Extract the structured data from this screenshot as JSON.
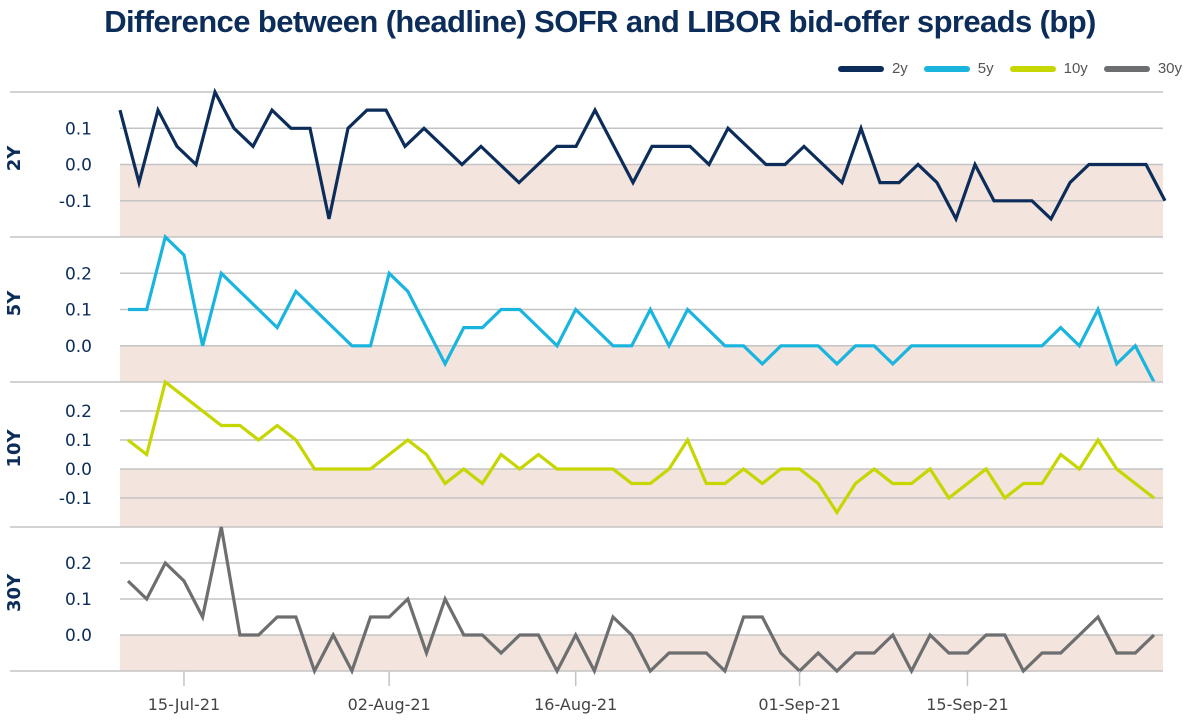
{
  "chart_data": {
    "type": "line",
    "title": "Difference between (headline) SOFR and LIBOR bid-offer spreads (bp)",
    "xlabel": "",
    "ylabel": "",
    "grid": true,
    "legend_position": "top-right",
    "x_tick_labels": [
      "15-Jul-21",
      "02-Aug-21",
      "16-Aug-21",
      "01-Sep-21",
      "15-Sep-21"
    ],
    "x_tick_indices": [
      3,
      14,
      24,
      36,
      45
    ],
    "n_points": 56,
    "negative_region_color": "#f3e4de",
    "series": [
      {
        "name": "2y",
        "panel_label": "2Y",
        "color": "#0c2d5a",
        "ylim": [
          -0.2,
          0.2
        ],
        "yticks": [
          "0.1",
          "0.0",
          "-0.1"
        ],
        "ytick_values": [
          0.1,
          0.0,
          -0.1
        ],
        "values": [
          0.15,
          -0.05,
          0.15,
          0.05,
          0.0,
          0.2,
          0.1,
          0.05,
          0.15,
          0.1,
          0.1,
          -0.15,
          0.1,
          0.15,
          0.15,
          0.05,
          0.1,
          0.05,
          0.0,
          0.05,
          0.0,
          -0.05,
          0.0,
          0.05,
          0.05,
          0.15,
          0.05,
          -0.05,
          0.05,
          0.05,
          0.05,
          0.0,
          0.1,
          0.05,
          0.0,
          0.0,
          0.05,
          0.0,
          -0.05,
          0.1,
          -0.05,
          -0.05,
          0.0,
          -0.05,
          -0.15,
          0.0,
          -0.1,
          -0.1,
          -0.1,
          -0.15,
          -0.05,
          0.0,
          0.0,
          0.0,
          0.0,
          -0.1
        ]
      },
      {
        "name": "5y",
        "panel_label": "5Y",
        "color": "#1ab5de",
        "ylim": [
          -0.1,
          0.3
        ],
        "yticks": [
          "0.2",
          "0.1",
          "0.0"
        ],
        "ytick_values": [
          0.2,
          0.1,
          0.0
        ],
        "values": [
          0.1,
          0.1,
          0.3,
          0.25,
          0.0,
          0.2,
          0.15,
          0.1,
          0.05,
          0.15,
          0.1,
          0.05,
          0.0,
          0.0,
          0.2,
          0.15,
          0.05,
          -0.05,
          0.05,
          0.05,
          0.1,
          0.1,
          0.05,
          0.0,
          0.1,
          0.05,
          0.0,
          0.0,
          0.1,
          0.0,
          0.1,
          0.05,
          0.0,
          0.0,
          -0.05,
          0.0,
          0.0,
          0.0,
          -0.05,
          0.0,
          0.0,
          -0.05,
          0.0,
          0.0,
          0.0,
          0.0,
          0.0,
          0.0,
          0.0,
          0.0,
          0.05,
          0.0,
          0.1,
          -0.05,
          0.0,
          -0.1
        ]
      },
      {
        "name": "10y",
        "panel_label": "10Y",
        "color": "#c6d600",
        "ylim": [
          -0.2,
          0.3
        ],
        "yticks": [
          "0.2",
          "0.1",
          "0.0",
          "-0.1"
        ],
        "ytick_values": [
          0.2,
          0.1,
          0.0,
          -0.1
        ],
        "values": [
          0.1,
          0.05,
          0.3,
          0.25,
          0.2,
          0.15,
          0.15,
          0.1,
          0.15,
          0.1,
          0.0,
          0.0,
          0.0,
          0.0,
          0.05,
          0.1,
          0.05,
          -0.05,
          0.0,
          -0.05,
          0.05,
          0.0,
          0.05,
          0.0,
          0.0,
          0.0,
          0.0,
          -0.05,
          -0.05,
          0.0,
          0.1,
          -0.05,
          -0.05,
          0.0,
          -0.05,
          0.0,
          0.0,
          -0.05,
          -0.15,
          -0.05,
          0.0,
          -0.05,
          -0.05,
          0.0,
          -0.1,
          -0.05,
          0.0,
          -0.1,
          -0.05,
          -0.05,
          0.05,
          0.0,
          0.1,
          0.0,
          -0.05,
          -0.1
        ]
      },
      {
        "name": "30y",
        "panel_label": "30Y",
        "color": "#6d6e70",
        "ylim": [
          -0.1,
          0.3
        ],
        "yticks": [
          "0.2",
          "0.1",
          "0.0"
        ],
        "ytick_values": [
          0.2,
          0.1,
          0.0
        ],
        "values": [
          0.15,
          0.1,
          0.2,
          0.15,
          0.05,
          0.3,
          0.0,
          0.0,
          0.05,
          0.05,
          -0.1,
          0.0,
          -0.1,
          0.05,
          0.05,
          0.1,
          -0.05,
          0.1,
          0.0,
          0.0,
          -0.05,
          0.0,
          0.0,
          -0.1,
          0.0,
          -0.1,
          0.05,
          0.0,
          -0.1,
          -0.05,
          -0.05,
          -0.05,
          -0.1,
          0.05,
          0.05,
          -0.05,
          -0.1,
          -0.05,
          -0.1,
          -0.05,
          -0.05,
          0.0,
          -0.1,
          0.0,
          -0.05,
          -0.05,
          0.0,
          0.0,
          -0.1,
          -0.05,
          -0.05,
          0.0,
          0.05,
          -0.05,
          -0.05,
          0.0
        ]
      }
    ]
  }
}
